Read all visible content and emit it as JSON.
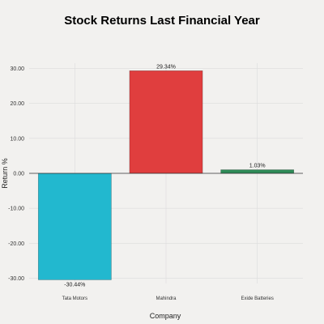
{
  "chart_data": {
    "type": "bar",
    "title": "Stock Returns Last Financial Year",
    "xlabel": "Company",
    "ylabel": "Return %",
    "categories": [
      "Tata Motors",
      "Mahindra",
      "Exide Batteries"
    ],
    "values": [
      -30.44,
      29.34,
      1.03
    ],
    "value_labels": [
      "-30.44%",
      "29.34%",
      "1.03%"
    ],
    "colors": [
      "#22b8cf",
      "#e03e3e",
      "#2e8b57"
    ],
    "yticks": [
      -30,
      -20,
      -10,
      0,
      10,
      20,
      30
    ],
    "ytick_labels": [
      "-30.00",
      "-20.00",
      "-10.00",
      "0.00",
      "10.00",
      "20.00",
      "30.00"
    ],
    "ylim": [
      -31.5,
      31.5
    ],
    "grid": true
  }
}
